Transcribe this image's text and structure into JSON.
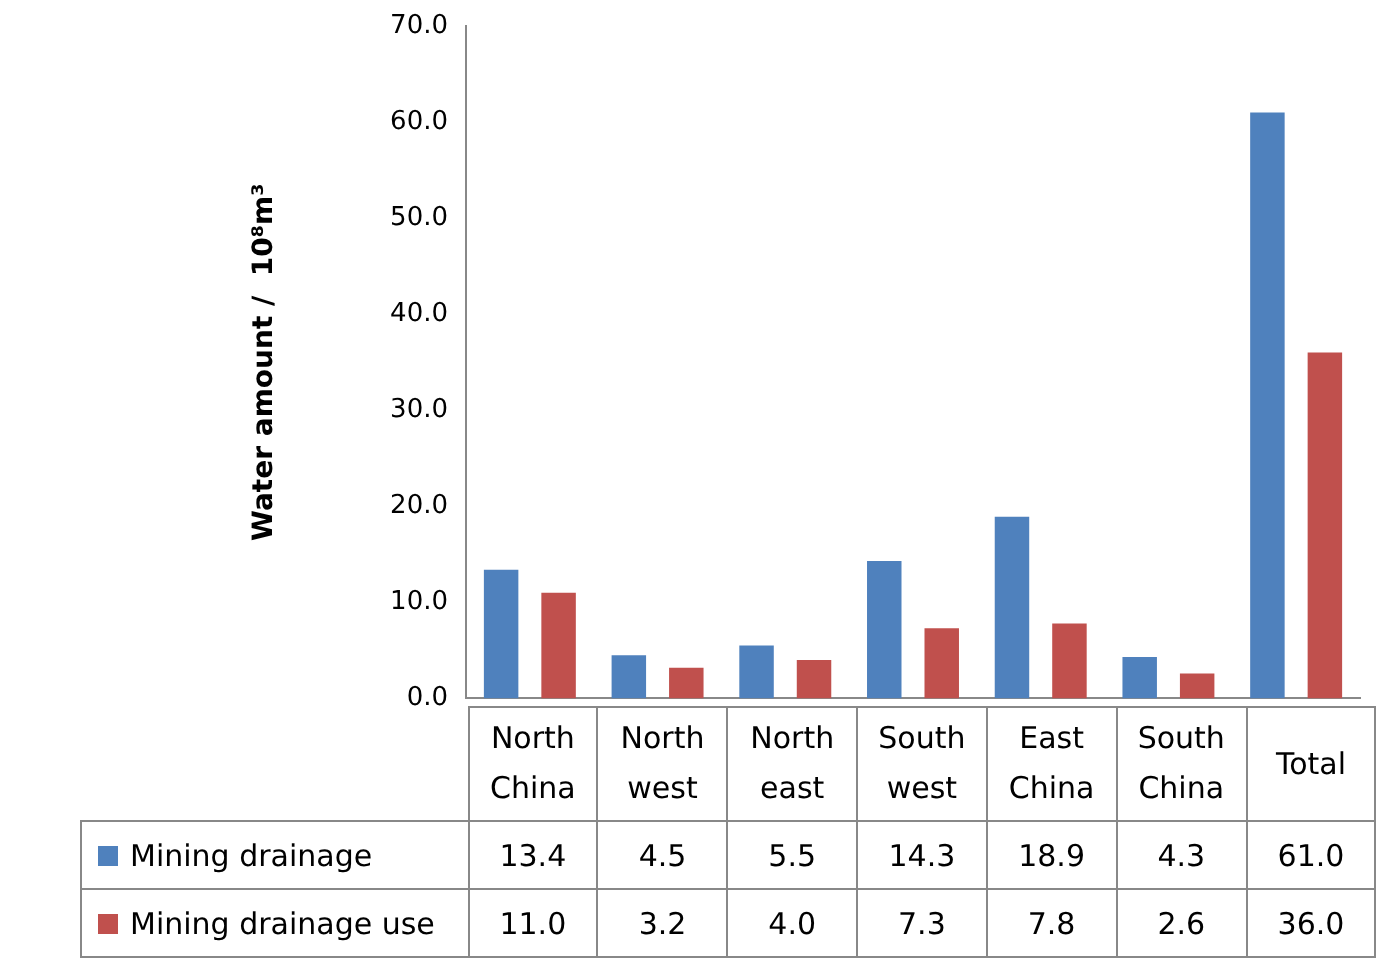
{
  "chart_data": {
    "type": "bar",
    "ylabel": "Water amount /  10⁸m³",
    "categories": [
      "North China",
      "North west",
      "North east",
      "South west",
      "East China",
      "South China",
      "Total"
    ],
    "series": [
      {
        "name": "Mining drainage",
        "color": "#4f81bd",
        "values": [
          13.4,
          4.5,
          5.5,
          14.3,
          18.9,
          4.3,
          61.0
        ],
        "value_labels": [
          "13.4",
          "4.5",
          "5.5",
          "14.3",
          "18.9",
          "4.3",
          "61.0"
        ]
      },
      {
        "name": "Mining drainage use",
        "color": "#c0504d",
        "values": [
          11.0,
          3.2,
          4.0,
          7.3,
          7.8,
          2.6,
          36.0
        ],
        "value_labels": [
          "11.0",
          "3.2",
          "4.0",
          "7.3",
          "7.8",
          "2.6",
          "36.0"
        ]
      }
    ],
    "ylim": [
      0,
      70
    ],
    "yticks": [
      {
        "value": 0,
        "label": "0.0"
      },
      {
        "value": 10,
        "label": "10.0"
      },
      {
        "value": 20,
        "label": "20.0"
      },
      {
        "value": 30,
        "label": "30.0"
      },
      {
        "value": 40,
        "label": "40.0"
      },
      {
        "value": 50,
        "label": "50.0"
      },
      {
        "value": 60,
        "label": "60.0"
      },
      {
        "value": 70,
        "label": "70.0"
      }
    ],
    "grid": false,
    "legend": "bottom"
  }
}
